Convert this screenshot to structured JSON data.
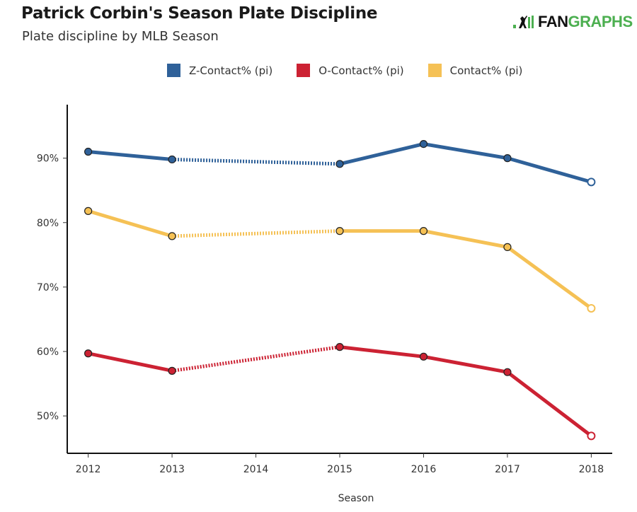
{
  "header": {
    "title": "Patrick Corbin's Season Plate Discipline",
    "subtitle": "Plate discipline by MLB Season"
  },
  "logo": {
    "text_dark": "FAN",
    "text_green": "GRAPHS",
    "icon": "batter-icon",
    "green": "#4caf50"
  },
  "chart_data": {
    "type": "line",
    "title": "Patrick Corbin's Season Plate Discipline",
    "subtitle": "Plate discipline by MLB Season",
    "xlabel": "Season",
    "ylabel": "",
    "x": [
      2012,
      2013,
      2014,
      2015,
      2016,
      2017,
      2018
    ],
    "x_ticks": [
      "2012",
      "2013",
      "2014",
      "2015",
      "2016",
      "2017",
      "2018"
    ],
    "y_ticks": [
      50,
      60,
      70,
      80,
      90
    ],
    "y_tick_labels": [
      "50%",
      "60%",
      "70%",
      "80%",
      "90%"
    ],
    "ylim": [
      44.2,
      98.3
    ],
    "xlim": [
      2011.75,
      2018.25
    ],
    "grid": false,
    "legend_position": "top",
    "missing_note": "2014 missing; gap drawn as dotted line, 2018 shown as hollow point",
    "series": [
      {
        "name": "Z-Contact% (pi)",
        "color": "#2f6199",
        "values": [
          91.0,
          89.8,
          null,
          89.1,
          92.2,
          90.0,
          86.3
        ]
      },
      {
        "name": "O-Contact% (pi)",
        "color": "#cc2233",
        "values": [
          59.7,
          57.0,
          null,
          60.7,
          59.2,
          56.8,
          46.9
        ]
      },
      {
        "name": "Contact% (pi)",
        "color": "#f5c155",
        "values": [
          81.8,
          77.9,
          null,
          78.7,
          78.7,
          76.2,
          66.7
        ]
      }
    ]
  }
}
